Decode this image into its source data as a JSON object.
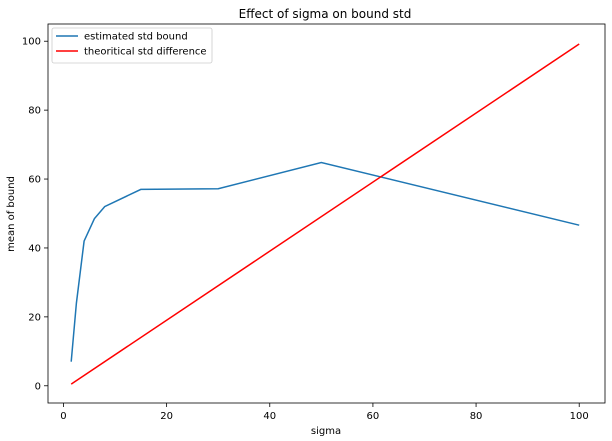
{
  "chart_data": {
    "type": "line",
    "title": "Effect of sigma on bound std",
    "xlabel": "sigma",
    "ylabel": "mean of bound",
    "xlim": [
      -3,
      105
    ],
    "ylim": [
      -5,
      105
    ],
    "xticks": [
      0,
      20,
      40,
      60,
      80,
      100
    ],
    "yticks": [
      0,
      20,
      40,
      60,
      80,
      100
    ],
    "grid": false,
    "legend_position": "top-left",
    "series": [
      {
        "name": "estimated std bound",
        "color": "#1f77b4",
        "x": [
          1.5,
          2.5,
          4,
          6,
          8,
          15,
          30,
          50,
          100
        ],
        "y": [
          7,
          24,
          42,
          48.5,
          52,
          57,
          57.2,
          64.8,
          46.6
        ]
      },
      {
        "name": "theoritical std difference",
        "color": "#ff0000",
        "x": [
          1.5,
          100
        ],
        "y": [
          0.5,
          99.2
        ]
      }
    ]
  }
}
